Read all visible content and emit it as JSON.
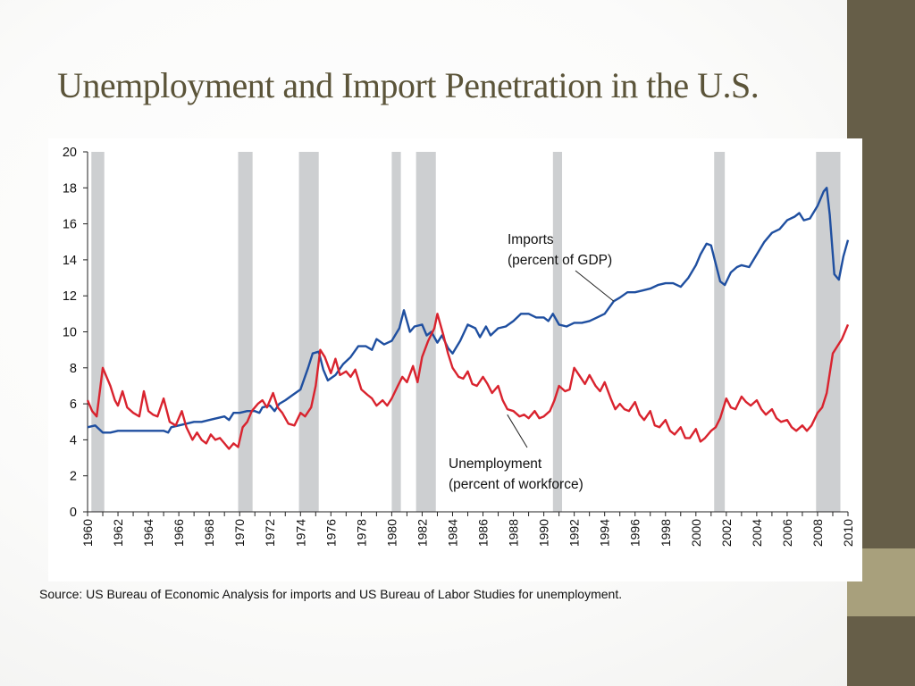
{
  "slide": {
    "title": "Unemployment and Import Penetration in the U.S.",
    "source": "Source: US Bureau of Economic Analysis for imports and US Bureau of Labor Studies for unemployment."
  },
  "colors": {
    "imports": "#1f4fa0",
    "unemployment": "#d9232e",
    "recession": "#cdcfd1",
    "sidebar": "#665e48",
    "sidebar_accent": "#a8a07c",
    "title": "#5b5439"
  },
  "chart_data": {
    "type": "line",
    "xlim": [
      1960,
      2010
    ],
    "ylim": [
      0,
      20
    ],
    "yticks": [
      0,
      2,
      4,
      6,
      8,
      10,
      12,
      14,
      16,
      18,
      20
    ],
    "xticks": [
      "1960",
      "1962",
      "1964",
      "1966",
      "1968",
      "1970",
      "1972",
      "1974",
      "1976",
      "1978",
      "1980",
      "1982",
      "1984",
      "1986",
      "1988",
      "1990",
      "1992",
      "1994",
      "1996",
      "1998",
      "2000",
      "2002",
      "2004",
      "2006",
      "2008",
      "2010"
    ],
    "grid": false,
    "recessions": [
      [
        1960.25,
        1961.1
      ],
      [
        1969.9,
        1970.85
      ],
      [
        1973.9,
        1975.2
      ],
      [
        1980.0,
        1980.6
      ],
      [
        1981.6,
        1982.9
      ],
      [
        1990.6,
        1991.2
      ],
      [
        2001.2,
        2001.9
      ],
      [
        2007.9,
        2009.5
      ]
    ],
    "annotations": [
      {
        "lines": [
          "Imports",
          "(percent of GDP)"
        ],
        "series": "imports",
        "target": [
          1994.6,
          11.7
        ]
      },
      {
        "lines": [
          "Unemployment",
          "(percent of workforce)"
        ],
        "series": "unemployment",
        "target": [
          1987.6,
          5.4
        ]
      }
    ],
    "series": [
      {
        "name": "imports",
        "points": [
          [
            1960,
            4.7
          ],
          [
            1960.5,
            4.8
          ],
          [
            1961,
            4.4
          ],
          [
            1961.5,
            4.4
          ],
          [
            1962,
            4.5
          ],
          [
            1962.5,
            4.5
          ],
          [
            1963,
            4.5
          ],
          [
            1963.5,
            4.5
          ],
          [
            1964,
            4.5
          ],
          [
            1964.5,
            4.5
          ],
          [
            1965,
            4.5
          ],
          [
            1965.3,
            4.4
          ],
          [
            1965.5,
            4.7
          ],
          [
            1966,
            4.8
          ],
          [
            1966.5,
            4.9
          ],
          [
            1967,
            5.0
          ],
          [
            1967.5,
            5.0
          ],
          [
            1968,
            5.1
          ],
          [
            1968.5,
            5.2
          ],
          [
            1969,
            5.3
          ],
          [
            1969.3,
            5.1
          ],
          [
            1969.6,
            5.5
          ],
          [
            1970,
            5.5
          ],
          [
            1970.5,
            5.6
          ],
          [
            1971,
            5.6
          ],
          [
            1971.3,
            5.5
          ],
          [
            1971.5,
            5.8
          ],
          [
            1972,
            5.9
          ],
          [
            1972.3,
            5.6
          ],
          [
            1972.6,
            6.0
          ],
          [
            1973,
            6.2
          ],
          [
            1973.5,
            6.5
          ],
          [
            1974,
            6.8
          ],
          [
            1974.5,
            8.0
          ],
          [
            1974.8,
            8.8
          ],
          [
            1975.2,
            8.9
          ],
          [
            1975.5,
            7.9
          ],
          [
            1975.8,
            7.3
          ],
          [
            1976.3,
            7.6
          ],
          [
            1976.8,
            8.2
          ],
          [
            1977.3,
            8.6
          ],
          [
            1977.8,
            9.2
          ],
          [
            1978.3,
            9.2
          ],
          [
            1978.7,
            9.0
          ],
          [
            1979,
            9.6
          ],
          [
            1979.5,
            9.3
          ],
          [
            1980,
            9.5
          ],
          [
            1980.5,
            10.2
          ],
          [
            1980.8,
            11.2
          ],
          [
            1981.2,
            10.0
          ],
          [
            1981.5,
            10.3
          ],
          [
            1982,
            10.4
          ],
          [
            1982.3,
            9.8
          ],
          [
            1982.6,
            10.0
          ],
          [
            1983,
            9.4
          ],
          [
            1983.3,
            9.8
          ],
          [
            1983.7,
            9.1
          ],
          [
            1984,
            8.8
          ],
          [
            1984.5,
            9.5
          ],
          [
            1985,
            10.4
          ],
          [
            1985.5,
            10.2
          ],
          [
            1985.8,
            9.7
          ],
          [
            1986.2,
            10.3
          ],
          [
            1986.5,
            9.8
          ],
          [
            1987,
            10.2
          ],
          [
            1987.5,
            10.3
          ],
          [
            1988,
            10.6
          ],
          [
            1988.5,
            11.0
          ],
          [
            1989,
            11.0
          ],
          [
            1989.5,
            10.8
          ],
          [
            1990,
            10.8
          ],
          [
            1990.3,
            10.6
          ],
          [
            1990.6,
            11.0
          ],
          [
            1991,
            10.4
          ],
          [
            1991.5,
            10.3
          ],
          [
            1992,
            10.5
          ],
          [
            1992.5,
            10.5
          ],
          [
            1993,
            10.6
          ],
          [
            1993.5,
            10.8
          ],
          [
            1994,
            11.0
          ],
          [
            1994.6,
            11.7
          ],
          [
            1995,
            11.9
          ],
          [
            1995.5,
            12.2
          ],
          [
            1996,
            12.2
          ],
          [
            1996.5,
            12.3
          ],
          [
            1997,
            12.4
          ],
          [
            1997.5,
            12.6
          ],
          [
            1998,
            12.7
          ],
          [
            1998.5,
            12.7
          ],
          [
            1999,
            12.5
          ],
          [
            1999.5,
            13.0
          ],
          [
            2000,
            13.7
          ],
          [
            2000.3,
            14.3
          ],
          [
            2000.7,
            14.9
          ],
          [
            2001,
            14.8
          ],
          [
            2001.3,
            13.8
          ],
          [
            2001.6,
            12.8
          ],
          [
            2001.9,
            12.6
          ],
          [
            2002.3,
            13.3
          ],
          [
            2002.7,
            13.6
          ],
          [
            2003,
            13.7
          ],
          [
            2003.5,
            13.6
          ],
          [
            2004,
            14.3
          ],
          [
            2004.5,
            15.0
          ],
          [
            2005,
            15.5
          ],
          [
            2005.5,
            15.7
          ],
          [
            2006,
            16.2
          ],
          [
            2006.5,
            16.4
          ],
          [
            2006.8,
            16.6
          ],
          [
            2007.1,
            16.2
          ],
          [
            2007.5,
            16.3
          ],
          [
            2008,
            17.0
          ],
          [
            2008.4,
            17.8
          ],
          [
            2008.6,
            18.0
          ],
          [
            2008.8,
            16.5
          ],
          [
            2009.1,
            13.2
          ],
          [
            2009.4,
            12.9
          ],
          [
            2009.7,
            14.2
          ],
          [
            2010,
            15.1
          ]
        ]
      },
      {
        "name": "unemployment",
        "points": [
          [
            1960,
            6.2
          ],
          [
            1960.3,
            5.6
          ],
          [
            1960.6,
            5.3
          ],
          [
            1961,
            8.0
          ],
          [
            1961.5,
            7.0
          ],
          [
            1961.8,
            6.2
          ],
          [
            1962,
            5.9
          ],
          [
            1962.3,
            6.7
          ],
          [
            1962.6,
            5.8
          ],
          [
            1963,
            5.5
          ],
          [
            1963.4,
            5.3
          ],
          [
            1963.7,
            6.7
          ],
          [
            1964,
            5.6
          ],
          [
            1964.3,
            5.4
          ],
          [
            1964.6,
            5.3
          ],
          [
            1965,
            6.3
          ],
          [
            1965.4,
            5.0
          ],
          [
            1965.8,
            4.8
          ],
          [
            1966.2,
            5.6
          ],
          [
            1966.5,
            4.7
          ],
          [
            1966.9,
            4.0
          ],
          [
            1967.2,
            4.4
          ],
          [
            1967.5,
            4.0
          ],
          [
            1967.8,
            3.8
          ],
          [
            1968.1,
            4.3
          ],
          [
            1968.4,
            4.0
          ],
          [
            1968.7,
            4.1
          ],
          [
            1969,
            3.8
          ],
          [
            1969.3,
            3.5
          ],
          [
            1969.6,
            3.8
          ],
          [
            1969.9,
            3.6
          ],
          [
            1970.2,
            4.7
          ],
          [
            1970.5,
            5.0
          ],
          [
            1970.8,
            5.6
          ],
          [
            1971.2,
            6.0
          ],
          [
            1971.5,
            6.2
          ],
          [
            1971.8,
            5.8
          ],
          [
            1972.2,
            6.6
          ],
          [
            1972.5,
            5.8
          ],
          [
            1972.8,
            5.5
          ],
          [
            1973.2,
            4.9
          ],
          [
            1973.6,
            4.8
          ],
          [
            1974,
            5.5
          ],
          [
            1974.3,
            5.3
          ],
          [
            1974.7,
            5.8
          ],
          [
            1975,
            7.0
          ],
          [
            1975.3,
            9.0
          ],
          [
            1975.6,
            8.6
          ],
          [
            1976,
            7.7
          ],
          [
            1976.3,
            8.5
          ],
          [
            1976.6,
            7.6
          ],
          [
            1977,
            7.8
          ],
          [
            1977.3,
            7.5
          ],
          [
            1977.6,
            7.9
          ],
          [
            1978,
            6.8
          ],
          [
            1978.4,
            6.5
          ],
          [
            1978.7,
            6.3
          ],
          [
            1979,
            5.9
          ],
          [
            1979.4,
            6.2
          ],
          [
            1979.7,
            5.9
          ],
          [
            1980,
            6.3
          ],
          [
            1980.4,
            7.0
          ],
          [
            1980.7,
            7.5
          ],
          [
            1981,
            7.2
          ],
          [
            1981.4,
            8.1
          ],
          [
            1981.7,
            7.2
          ],
          [
            1982,
            8.6
          ],
          [
            1982.4,
            9.5
          ],
          [
            1982.8,
            10.2
          ],
          [
            1983,
            11.0
          ],
          [
            1983.4,
            9.8
          ],
          [
            1983.7,
            8.8
          ],
          [
            1984,
            8.0
          ],
          [
            1984.4,
            7.5
          ],
          [
            1984.7,
            7.4
          ],
          [
            1985,
            7.8
          ],
          [
            1985.3,
            7.1
          ],
          [
            1985.6,
            7.0
          ],
          [
            1986,
            7.5
          ],
          [
            1986.3,
            7.1
          ],
          [
            1986.6,
            6.6
          ],
          [
            1987,
            7.0
          ],
          [
            1987.3,
            6.2
          ],
          [
            1987.6,
            5.7
          ],
          [
            1988,
            5.6
          ],
          [
            1988.4,
            5.3
          ],
          [
            1988.7,
            5.4
          ],
          [
            1989,
            5.2
          ],
          [
            1989.4,
            5.6
          ],
          [
            1989.7,
            5.2
          ],
          [
            1990,
            5.3
          ],
          [
            1990.4,
            5.6
          ],
          [
            1990.7,
            6.2
          ],
          [
            1991,
            7.0
          ],
          [
            1991.4,
            6.7
          ],
          [
            1991.7,
            6.8
          ],
          [
            1992,
            8.0
          ],
          [
            1992.4,
            7.5
          ],
          [
            1992.7,
            7.1
          ],
          [
            1993,
            7.6
          ],
          [
            1993.4,
            7.0
          ],
          [
            1993.7,
            6.7
          ],
          [
            1994,
            7.2
          ],
          [
            1994.4,
            6.3
          ],
          [
            1994.7,
            5.7
          ],
          [
            1995,
            6.0
          ],
          [
            1995.3,
            5.7
          ],
          [
            1995.6,
            5.6
          ],
          [
            1996,
            6.1
          ],
          [
            1996.3,
            5.4
          ],
          [
            1996.6,
            5.1
          ],
          [
            1997,
            5.6
          ],
          [
            1997.3,
            4.8
          ],
          [
            1997.6,
            4.7
          ],
          [
            1998,
            5.1
          ],
          [
            1998.3,
            4.5
          ],
          [
            1998.6,
            4.3
          ],
          [
            1999,
            4.7
          ],
          [
            1999.3,
            4.1
          ],
          [
            1999.6,
            4.1
          ],
          [
            2000,
            4.6
          ],
          [
            2000.3,
            3.9
          ],
          [
            2000.6,
            4.1
          ],
          [
            2001,
            4.5
          ],
          [
            2001.3,
            4.7
          ],
          [
            2001.6,
            5.2
          ],
          [
            2002,
            6.3
          ],
          [
            2002.3,
            5.8
          ],
          [
            2002.6,
            5.7
          ],
          [
            2003,
            6.4
          ],
          [
            2003.3,
            6.1
          ],
          [
            2003.6,
            5.9
          ],
          [
            2004,
            6.2
          ],
          [
            2004.3,
            5.7
          ],
          [
            2004.6,
            5.4
          ],
          [
            2005,
            5.7
          ],
          [
            2005.3,
            5.2
          ],
          [
            2005.6,
            5.0
          ],
          [
            2006,
            5.1
          ],
          [
            2006.3,
            4.7
          ],
          [
            2006.6,
            4.5
          ],
          [
            2007,
            4.8
          ],
          [
            2007.3,
            4.5
          ],
          [
            2007.6,
            4.8
          ],
          [
            2008,
            5.5
          ],
          [
            2008.3,
            5.8
          ],
          [
            2008.6,
            6.6
          ],
          [
            2009,
            8.8
          ],
          [
            2009.3,
            9.2
          ],
          [
            2009.6,
            9.6
          ],
          [
            2010,
            10.4
          ]
        ]
      }
    ]
  }
}
